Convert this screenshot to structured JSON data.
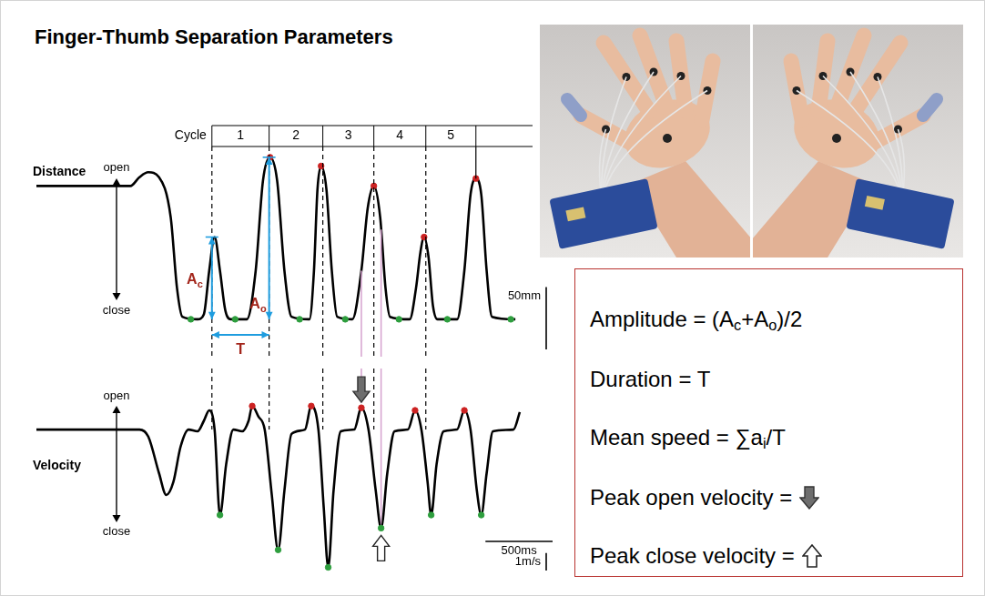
{
  "title": "Finger-Thumb Separation Parameters",
  "chart_data": [
    {
      "type": "line",
      "title": "Distance",
      "direction_labels": [
        "open",
        "close"
      ],
      "color": "#000000",
      "x": [
        0,
        700,
        767,
        833,
        913,
        1000,
        1047,
        1087,
        1200,
        1247,
        1287,
        1327,
        1367,
        1407,
        1447,
        1567,
        1633,
        1687,
        1740,
        1793,
        1847,
        1900,
        2033,
        2067,
        2093,
        2120,
        2160,
        2200,
        2240,
        2353,
        2420,
        2467,
        2513,
        2560,
        2600,
        2633,
        2780,
        2827,
        2860,
        2887,
        2920,
        2953,
        2987,
        3133,
        3187,
        3233,
        3273,
        3313,
        3353,
        3393,
        3567
      ],
      "values": [
        107,
        107,
        114,
        118,
        114,
        82,
        25,
        2,
        0,
        4,
        39,
        66,
        39,
        7,
        0,
        0,
        39,
        111,
        130,
        111,
        39,
        2,
        0,
        39,
        104,
        123,
        104,
        39,
        2,
        0,
        39,
        89,
        107,
        82,
        25,
        2,
        0,
        25,
        54,
        66,
        50,
        11,
        0,
        0,
        39,
        100,
        113,
        100,
        39,
        2,
        0
      ],
      "peaks": {
        "x": [
          1740,
          2120,
          2513,
          2887,
          3273
        ],
        "values": [
          130,
          123,
          107,
          66,
          113
        ],
        "color": "#cc2222"
      },
      "troughs": {
        "x": [
          1150,
          1480,
          1960,
          2300,
          2700,
          3060,
          3533
        ],
        "values": [
          0,
          0,
          0,
          0,
          0,
          0,
          0
        ],
        "color": "#2e9e3e"
      },
      "cycles": {
        "label": "Cycle",
        "numbers": [
          1,
          2,
          3,
          4,
          5
        ],
        "boundaries": [
          1307,
          1733,
          2133,
          2513,
          2900,
          3273
        ]
      },
      "amplitudes": [
        {
          "label": [
            {
              "text": "A"
            },
            {
              "sub": "c"
            }
          ],
          "x": 1307,
          "value": 66
        },
        {
          "label": [
            {
              "text": "A"
            },
            {
              "sub": "o"
            }
          ],
          "x": 1733,
          "value": 130
        }
      ],
      "duration": {
        "label": "T",
        "from": 1307,
        "to": 1733
      },
      "scale_bars": [
        {
          "label": "50mm",
          "value": 50,
          "axis": "y"
        }
      ],
      "xlim": [
        0,
        4000
      ],
      "ylim": [
        -30,
        135
      ],
      "xticks": [],
      "yticks": [],
      "tick_labels": false,
      "grid": false
    },
    {
      "type": "line",
      "title": "Velocity",
      "direction_labels": [
        "open",
        "close"
      ],
      "color": "#000000",
      "x": [
        0,
        767,
        833,
        913,
        967,
        1020,
        1073,
        1133,
        1200,
        1247,
        1287,
        1327,
        1367,
        1413,
        1467,
        1533,
        1580,
        1607,
        1653,
        1700,
        1753,
        1800,
        1847,
        1900,
        2000,
        2047,
        2100,
        2140,
        2173,
        2213,
        2267,
        2367,
        2420,
        2473,
        2527,
        2567,
        2613,
        2667,
        2767,
        2820,
        2867,
        2913,
        2940,
        2980,
        3033,
        3133,
        3187,
        3233,
        3280,
        3313,
        3353,
        3400,
        3553,
        3600
      ],
      "values": [
        0,
        0,
        -0.4,
        -2.5,
        -3.75,
        -3,
        -1,
        0,
        -0.1,
        0.5,
        1.1,
        0,
        -4.9,
        -2,
        0,
        -0.1,
        0.5,
        1.35,
        0.75,
        0,
        -3.75,
        -6.9,
        -3.5,
        -0.25,
        0,
        1.35,
        0,
        -4.5,
        -7.9,
        -3.5,
        -0.1,
        0,
        1.25,
        0,
        -3.5,
        -5.65,
        -2.5,
        -0.1,
        0,
        1.1,
        0,
        -3,
        -4.9,
        -2,
        -0.1,
        0,
        1.1,
        0,
        -3.5,
        -4.9,
        -2.5,
        -0.1,
        0,
        1
      ],
      "peaks": {
        "x": [
          1607,
          2047,
          2420,
          2820,
          3187
        ],
        "values": [
          1.35,
          1.35,
          1.25,
          1.1,
          1.1
        ],
        "color": "#cc2222"
      },
      "troughs": {
        "x": [
          1367,
          1800,
          2173,
          2567,
          2940,
          3313
        ],
        "values": [
          -4.9,
          -6.9,
          -7.9,
          -5.65,
          -4.9,
          -4.9
        ],
        "color": "#2e9e3e"
      },
      "peak_open_velocity": {
        "x": 2420,
        "value": 1.25
      },
      "peak_close_velocity": {
        "x": 2567,
        "value": -5.65
      },
      "scale_bars": [
        {
          "label": "1m/s",
          "value": 1,
          "axis": "y"
        },
        {
          "label": "500ms",
          "value": 500,
          "axis": "x"
        }
      ],
      "xlim": [
        0,
        4000
      ],
      "ylim": [
        -8.5,
        3.5
      ],
      "xticks": [],
      "yticks": [],
      "tick_labels": false,
      "grid": false
    }
  ],
  "definitions": [
    {
      "runs": [
        {
          "text": "Amplitude = (A"
        },
        {
          "sub": "c"
        },
        {
          "text": "+A"
        },
        {
          "sub": "o"
        },
        {
          "text": ")/2"
        }
      ]
    },
    {
      "runs": [
        {
          "text": "Duration = T"
        }
      ]
    },
    {
      "runs": [
        {
          "text": "Mean speed = ∑a"
        },
        {
          "sub": "i"
        },
        {
          "text": "/T"
        }
      ]
    },
    {
      "runs": [
        {
          "text": "Peak open velocity ="
        }
      ],
      "marker": "down_arrow"
    },
    {
      "runs": [
        {
          "text": "Peak close velocity ="
        }
      ],
      "marker": "up_arrow"
    }
  ]
}
